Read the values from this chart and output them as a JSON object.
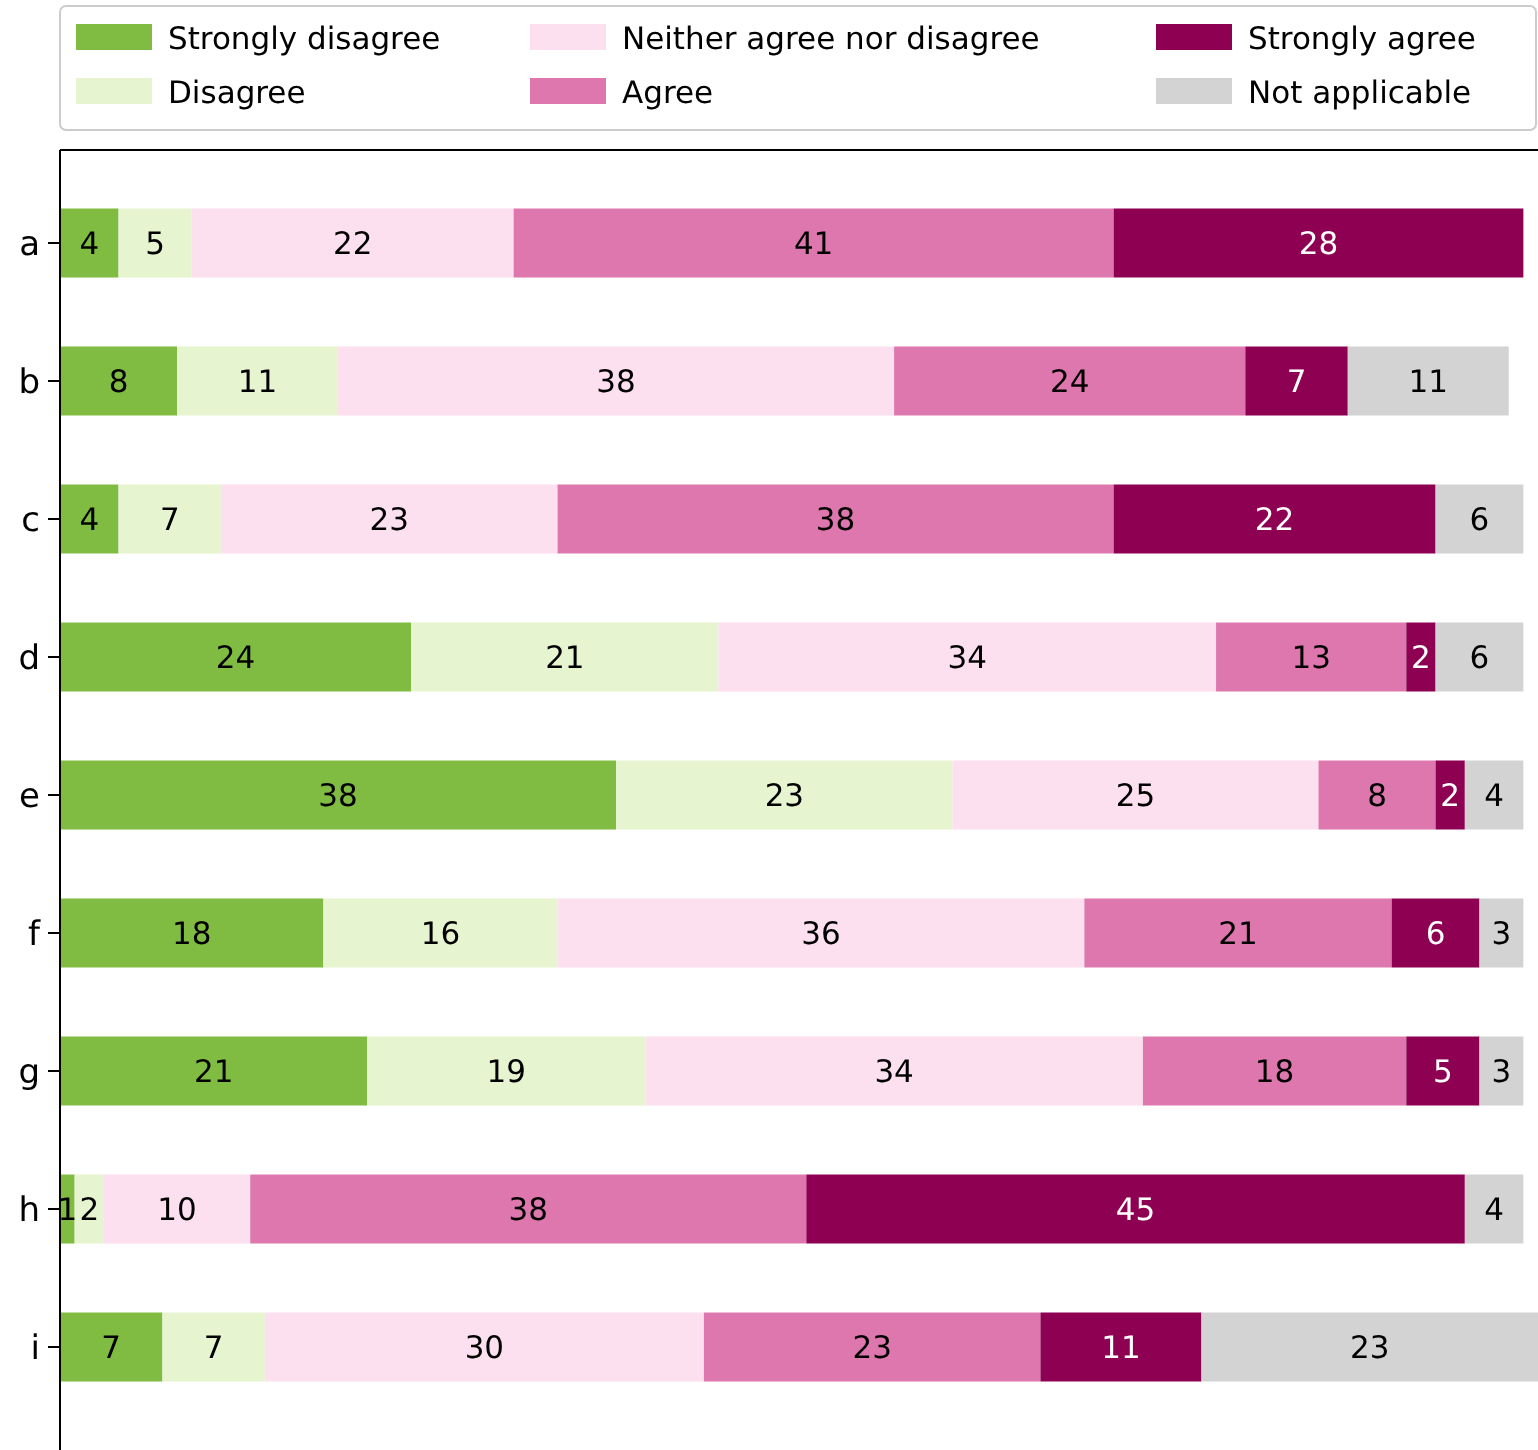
{
  "chart_data": {
    "type": "bar",
    "orientation": "horizontal",
    "stacked": true,
    "data_labels": true,
    "legend": "top",
    "tick_labels": "y",
    "xlim": [
      0,
      101
    ],
    "categories": [
      "a",
      "b",
      "c",
      "d",
      "e",
      "f",
      "g",
      "h",
      "i"
    ],
    "series": [
      {
        "name": "Strongly disagree",
        "color": "#7fbc41",
        "values": [
          4,
          8,
          4,
          24,
          38,
          18,
          21,
          1,
          7
        ]
      },
      {
        "name": "Disagree",
        "color": "#e6f5d0",
        "values": [
          5,
          11,
          7,
          21,
          23,
          16,
          19,
          2,
          7
        ]
      },
      {
        "name": "Neither agree nor disagree",
        "color": "#fde0ef",
        "values": [
          22,
          38,
          23,
          34,
          25,
          36,
          34,
          10,
          30
        ]
      },
      {
        "name": "Agree",
        "color": "#de77ae",
        "values": [
          41,
          24,
          38,
          13,
          8,
          21,
          18,
          38,
          23
        ]
      },
      {
        "name": "Strongly agree",
        "color": "#8e0152",
        "values": [
          28,
          7,
          22,
          2,
          2,
          6,
          5,
          45,
          11
        ]
      },
      {
        "name": "Not applicable",
        "color": "#d3d3d3",
        "values": [
          null,
          11,
          6,
          6,
          4,
          3,
          3,
          4,
          23
        ]
      }
    ]
  }
}
